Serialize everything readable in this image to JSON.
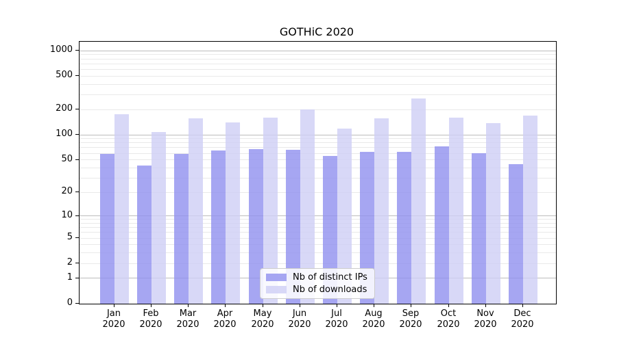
{
  "chart_data": {
    "type": "bar",
    "title": "GOTHiC 2020",
    "categories": [
      "Jan 2020",
      "Feb 2020",
      "Mar 2020",
      "Apr 2020",
      "May 2020",
      "Jun 2020",
      "Jul 2020",
      "Aug 2020",
      "Sep 2020",
      "Oct 2020",
      "Nov 2020",
      "Dec 2020"
    ],
    "series": [
      {
        "name": "Nb of distinct IPs",
        "color": "rgba(144,144,239,0.8)",
        "color_solid_hex": "#a6a6f2",
        "values": [
          59,
          43,
          59,
          65,
          67,
          66,
          56,
          63,
          62,
          72,
          60,
          44
        ]
      },
      {
        "name": "Nb of downloads",
        "color": "rgba(206,206,245,0.8)",
        "color_solid_hex": "#d8d8f7",
        "values": [
          177,
          109,
          157,
          140,
          159,
          200,
          118,
          157,
          273,
          160,
          137,
          171
        ]
      }
    ],
    "xlabel": "",
    "ylabel": "",
    "yticks": [
      0,
      1,
      2,
      5,
      10,
      20,
      50,
      100,
      200,
      500,
      1000
    ],
    "ylim": [
      0,
      1283
    ],
    "yscale": "symlog",
    "grid": "on",
    "major_grid_at": [
      1,
      10,
      100,
      1000
    ],
    "legend_position": "lower center",
    "colors": {
      "major_grid": "#bcbcbc",
      "minor_grid": "#e9e9e9",
      "spine": "#000000",
      "background": "#ffffff"
    }
  }
}
